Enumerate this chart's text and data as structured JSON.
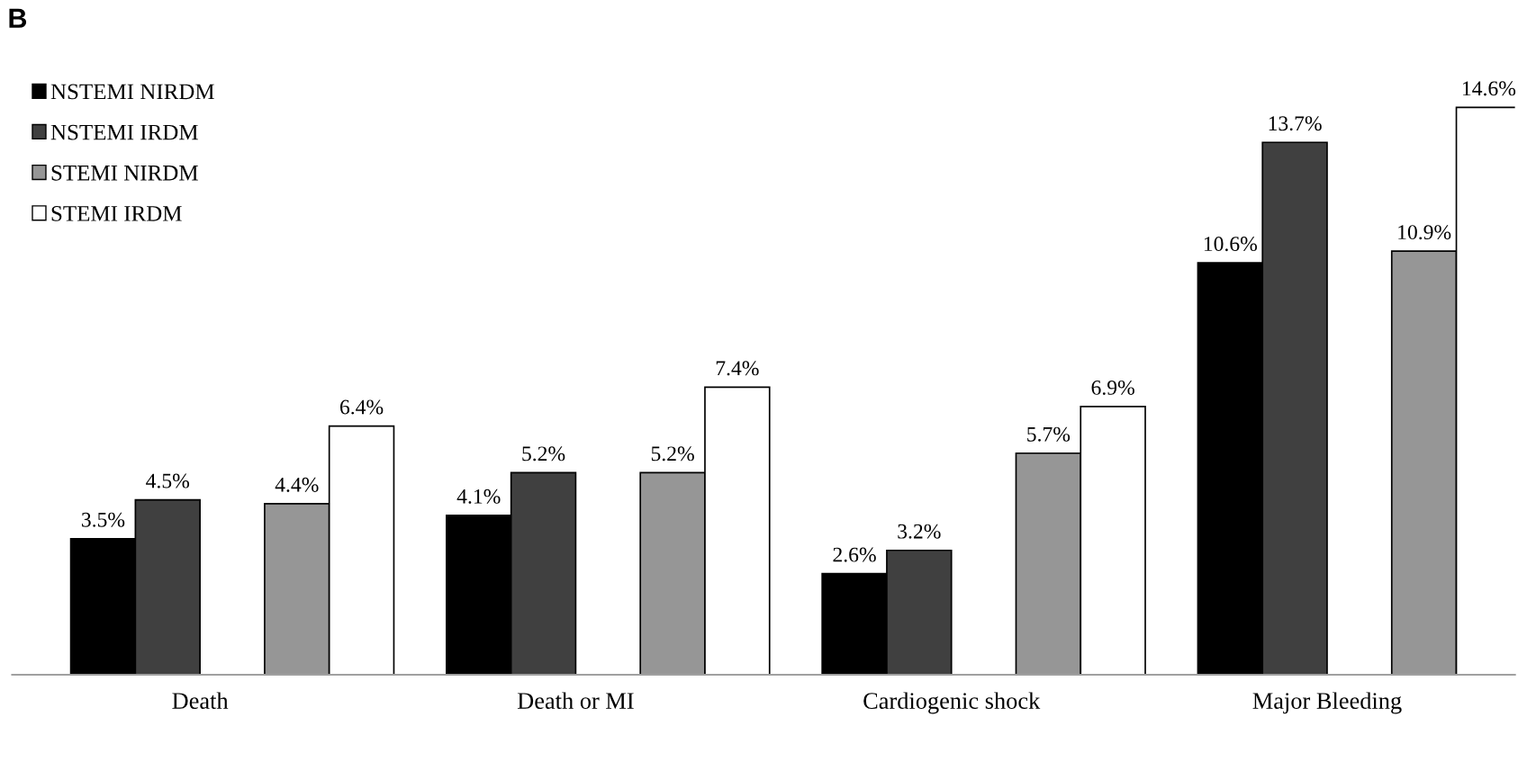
{
  "chart_data": {
    "type": "bar",
    "title": "B",
    "categories": [
      "Death",
      "Death or MI",
      "Cardiogenic shock",
      "Major Bleeding"
    ],
    "series": [
      {
        "name": "NSTEMI NIRDM",
        "color": "#000000",
        "values": [
          3.5,
          4.1,
          2.6,
          10.6
        ],
        "value_labels": [
          "3.5%",
          "4.1%",
          "2.6%",
          "10.6%"
        ]
      },
      {
        "name": "NSTEMI IRDM",
        "color": "#404040",
        "values": [
          4.5,
          5.2,
          3.2,
          13.7
        ],
        "value_labels": [
          "4.5%",
          "5.2%",
          "3.2%",
          "13.7%"
        ]
      },
      {
        "name": "STEMI NIRDM",
        "color": "#969696",
        "values": [
          4.4,
          5.2,
          5.7,
          10.9
        ],
        "value_labels": [
          "4.4%",
          "5.2%",
          "5.7%",
          "10.9%"
        ]
      },
      {
        "name": "STEMI IRDM",
        "color": "#ffffff",
        "values": [
          6.4,
          7.4,
          6.9,
          14.6
        ],
        "value_labels": [
          "6.4%",
          "7.4%",
          "6.9%",
          "14.6%"
        ]
      }
    ],
    "legend": "top left",
    "grid": false
  }
}
